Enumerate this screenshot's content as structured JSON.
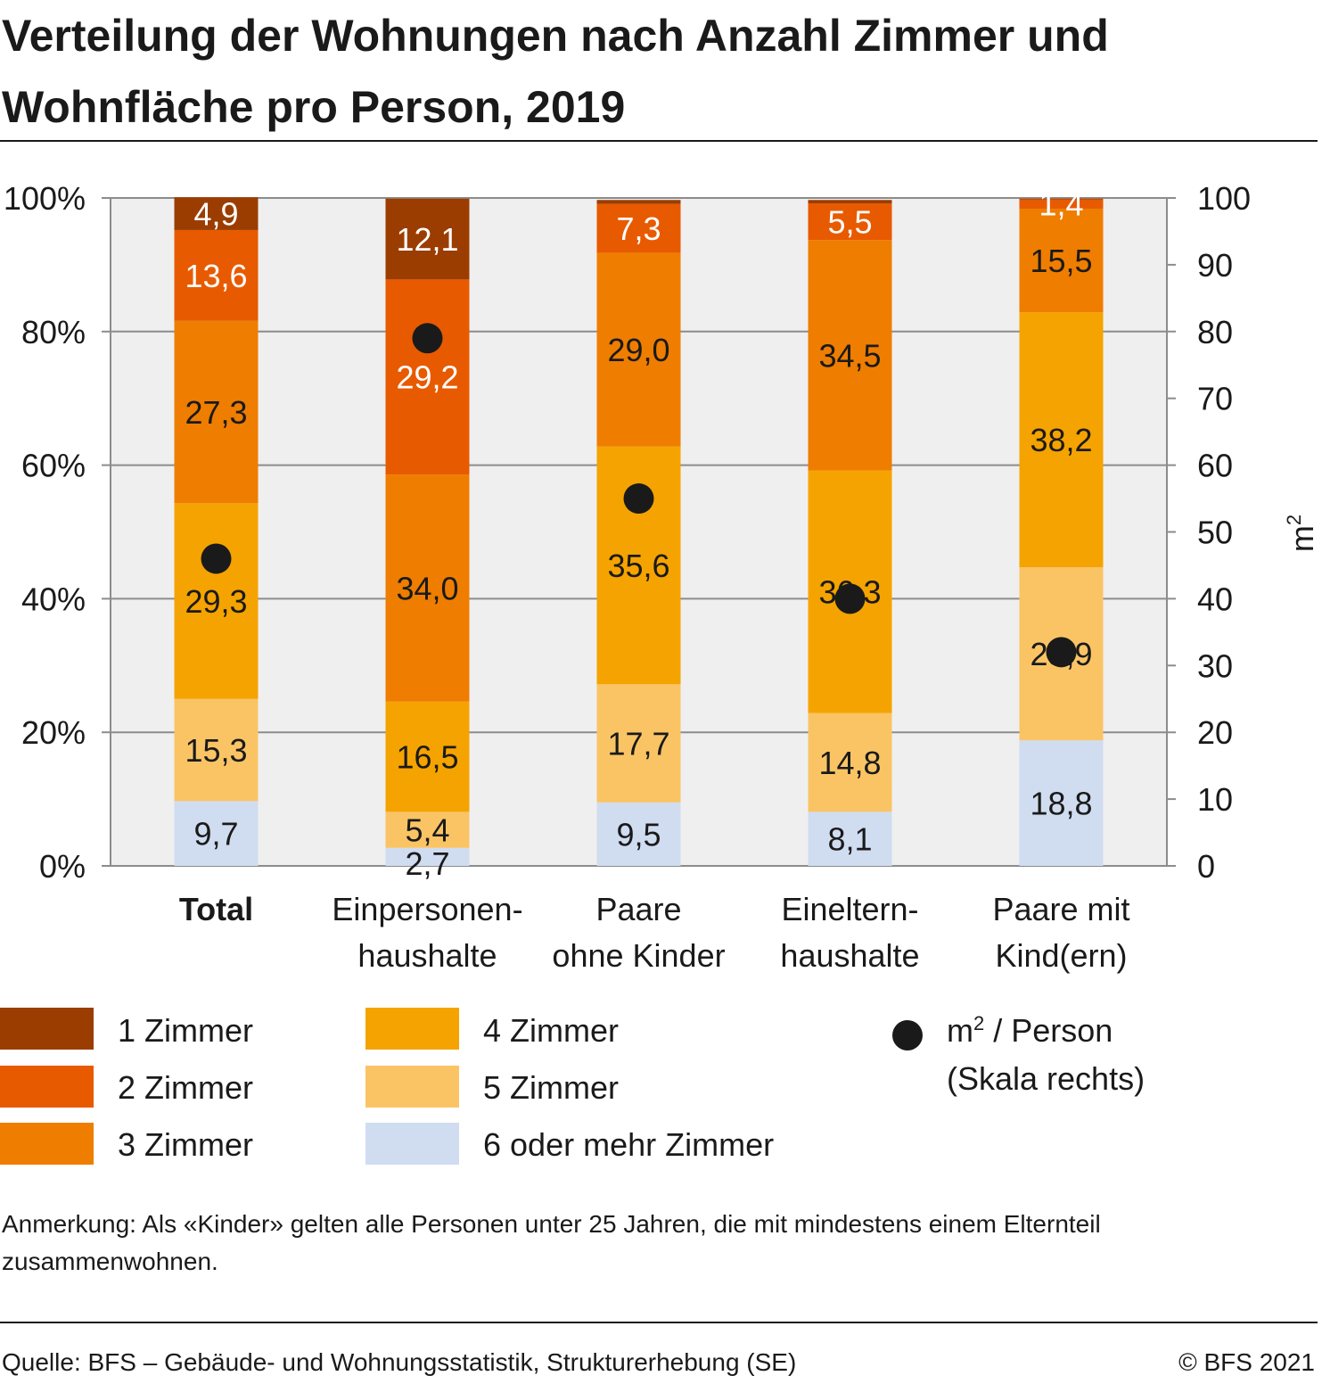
{
  "title": "Verteilung der Wohnungen nach Anzahl Zimmer und Wohnfläche pro Person, 2019",
  "note": "Anmerkung: Als «Kinder» gelten alle Personen unter 25 Jahren, die mit mindestens einem Elternteil zusammenwohnen.",
  "source": "Quelle: BFS – Gebäude- und Wohnungsstatistik, Strukturerhebung (SE)",
  "copyright": "© BFS 2021",
  "colors": {
    "z1": "#9b3d00",
    "z2": "#e85a00",
    "z3": "#ef7d00",
    "z4": "#f5a300",
    "z5": "#fac465",
    "z6": "#d0dcf0",
    "plot_bg": "#efefef",
    "grid": "#8c8c8c",
    "dot": "#1a1a1a"
  },
  "legend": {
    "dot_label_main": "m",
    "dot_label_sup": "2",
    "dot_label_rest": " / Person",
    "dot_label_line2": "(Skala rechts)"
  },
  "chart_data": {
    "type": "bar",
    "stacked": true,
    "categories": [
      {
        "lines": [
          "Total"
        ],
        "bold": true
      },
      {
        "lines": [
          "Einpersonen-",
          "haushalte"
        ],
        "bold": false
      },
      {
        "lines": [
          "Paare",
          "ohne Kinder"
        ],
        "bold": false
      },
      {
        "lines": [
          "Eineltern-",
          "haushalte"
        ],
        "bold": false
      },
      {
        "lines": [
          "Paare mit",
          "Kind(ern)"
        ],
        "bold": false
      }
    ],
    "series": [
      {
        "name": "6 oder mehr Zimmer",
        "key": "z6",
        "values": [
          9.7,
          2.7,
          9.5,
          8.1,
          18.8
        ],
        "labels": [
          "9,7",
          "2,7",
          "9,5",
          "8,1",
          "18,8"
        ]
      },
      {
        "name": "5 Zimmer",
        "key": "z5",
        "values": [
          15.3,
          5.4,
          17.7,
          14.8,
          25.9
        ],
        "labels": [
          "15,3",
          "5,4",
          "17,7",
          "14,8",
          "25,9"
        ]
      },
      {
        "name": "4 Zimmer",
        "key": "z4",
        "values": [
          29.3,
          16.5,
          35.6,
          36.3,
          38.2
        ],
        "labels": [
          "29,3",
          "16,5",
          "35,6",
          "36,3",
          "38,2"
        ]
      },
      {
        "name": "3 Zimmer",
        "key": "z3",
        "values": [
          27.3,
          34.0,
          29.0,
          34.5,
          15.5
        ],
        "labels": [
          "27,3",
          "34,0",
          "29,0",
          "34,5",
          "15,5"
        ]
      },
      {
        "name": "2 Zimmer",
        "key": "z2",
        "values": [
          13.6,
          29.2,
          7.3,
          5.5,
          1.4
        ],
        "labels": [
          "13,6",
          "29,2",
          "7,3",
          "5,5",
          "1,4"
        ]
      },
      {
        "name": "1 Zimmer",
        "key": "z1",
        "values": [
          4.9,
          12.1,
          0.6,
          0.5,
          0.1
        ],
        "labels": [
          "4,9",
          "12,1",
          "",
          "",
          ""
        ]
      }
    ],
    "dots": {
      "name": "m² / Person (Skala rechts)",
      "values": [
        46,
        79,
        55,
        40,
        32
      ]
    },
    "y_left": {
      "ylim": [
        0,
        100
      ],
      "ticks": [
        "0%",
        "20%",
        "40%",
        "60%",
        "80%",
        "100%"
      ]
    },
    "y_right": {
      "ylim": [
        0,
        100
      ],
      "ticks": [
        "0",
        "10",
        "20",
        "30",
        "40",
        "50",
        "60",
        "70",
        "80",
        "90",
        "100"
      ],
      "label_main": "m",
      "label_sup": "2"
    },
    "legend_placement": "bottom"
  }
}
